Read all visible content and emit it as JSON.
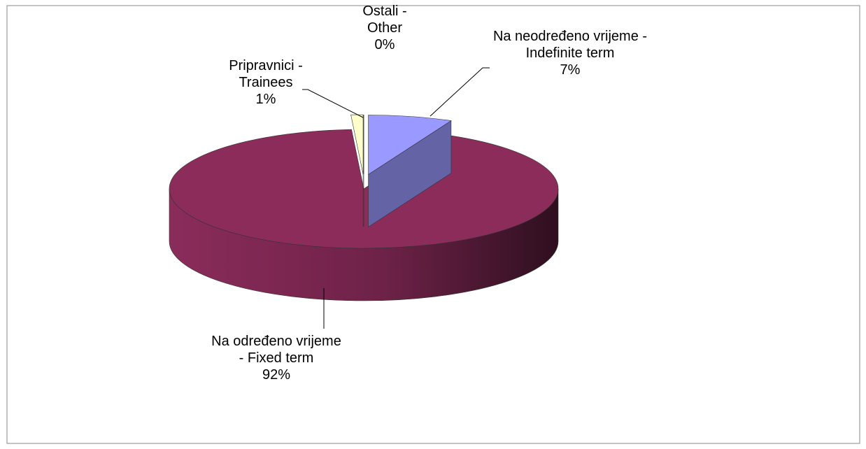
{
  "chart_data": {
    "type": "pie",
    "categories": [
      "Na neodređeno vrijeme - Indefinite term",
      "Na određeno vrijeme - Fixed term",
      "Pripravnici - Trainees",
      "Ostali - Other"
    ],
    "values": [
      7,
      92,
      1,
      0
    ],
    "value_labels": [
      "7%",
      "92%",
      "1%",
      "0%"
    ],
    "colors": [
      "#9999ff",
      "#8b2c5b",
      "#ffffcc",
      "#ccffff"
    ]
  }
}
